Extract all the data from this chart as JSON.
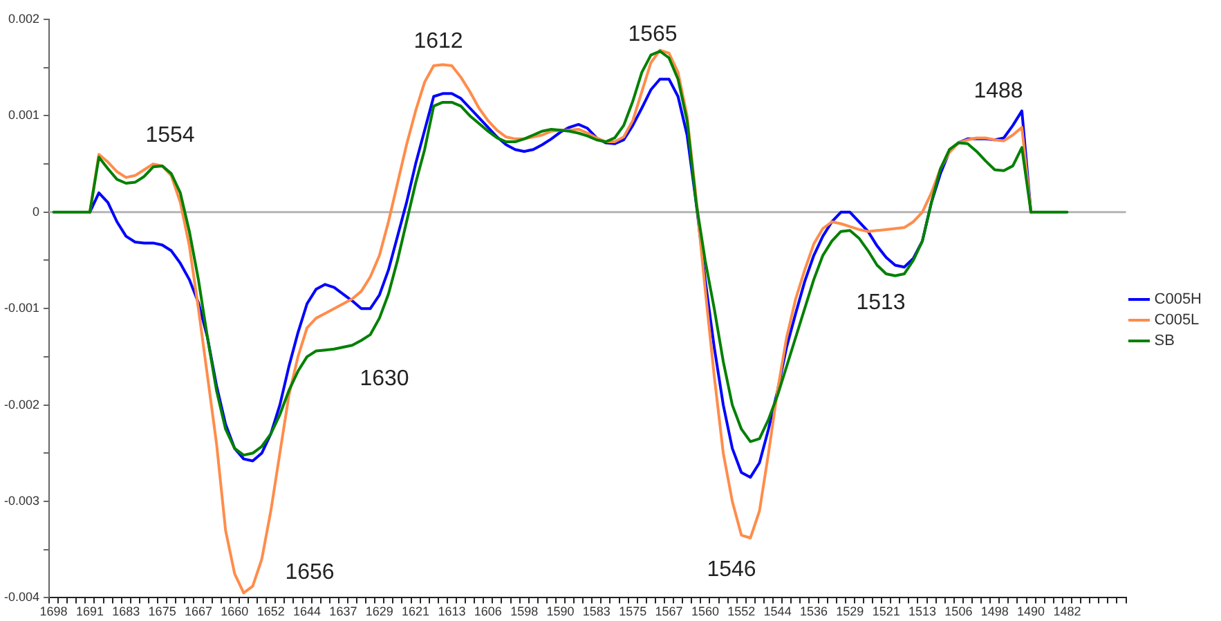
{
  "chart_data": {
    "type": "line",
    "categories": [
      "1698",
      null,
      null,
      null,
      "1691",
      null,
      null,
      null,
      "1683",
      null,
      null,
      null,
      "1675",
      null,
      null,
      null,
      "1667",
      null,
      null,
      null,
      "1660",
      null,
      null,
      null,
      "1652",
      null,
      null,
      null,
      "1644",
      null,
      null,
      null,
      "1637",
      null,
      null,
      null,
      "1629",
      null,
      null,
      null,
      "1621",
      null,
      null,
      null,
      "1613",
      null,
      null,
      null,
      "1606",
      null,
      null,
      null,
      "1598",
      null,
      null,
      null,
      "1590",
      null,
      null,
      null,
      "1583",
      null,
      null,
      null,
      "1575",
      null,
      null,
      null,
      "1567",
      null,
      null,
      null,
      "1560",
      null,
      null,
      null,
      "1552",
      null,
      null,
      null,
      "1544",
      null,
      null,
      null,
      "1536",
      null,
      null,
      null,
      "1529",
      null,
      null,
      null,
      "1521",
      null,
      null,
      null,
      "1513",
      null,
      null,
      null,
      "1506",
      null,
      null,
      null,
      "1498",
      null,
      null,
      null,
      "1490",
      null,
      null,
      null,
      "1482",
      null,
      null,
      null,
      null,
      null,
      null
    ],
    "series": [
      {
        "name": "C005H",
        "color": "#0000ff",
        "values": [
          null,
          null,
          null,
          null,
          0,
          0.0002,
          0.0001,
          -0.0001,
          -0.00025,
          -0.00031,
          -0.00032,
          -0.00032,
          -0.00034,
          -0.0004,
          -0.00053,
          -0.0007,
          -0.00094,
          -0.0013,
          -0.0018,
          -0.0022,
          -0.00245,
          -0.00256,
          -0.00258,
          -0.0025,
          -0.0023,
          -0.002,
          -0.0016,
          -0.00125,
          -0.00095,
          -0.0008,
          -0.00075,
          -0.00078,
          -0.00085,
          -0.00092,
          -0.001,
          -0.001,
          -0.00086,
          -0.0006,
          -0.00025,
          0.0001,
          0.0005,
          0.00085,
          0.0012,
          0.00123,
          0.00123,
          0.00118,
          0.00108,
          0.00098,
          0.00088,
          0.00078,
          0.0007,
          0.00065,
          0.00063,
          0.00065,
          0.0007,
          0.00076,
          0.00083,
          0.00088,
          0.00091,
          0.00087,
          0.00077,
          0.00072,
          0.00071,
          0.00075,
          0.0009,
          0.00108,
          0.00127,
          0.00138,
          0.00138,
          0.0012,
          0.0008,
          0.0001,
          -0.0007,
          -0.0014,
          -0.002,
          -0.00245,
          -0.0027,
          -0.00275,
          -0.0026,
          -0.00225,
          -0.00185,
          -0.0014,
          -0.00105,
          -0.00072,
          -0.00045,
          -0.00025,
          -0.0001,
          0,
          0,
          -0.0001,
          -0.0002,
          -0.00035,
          -0.00047,
          -0.00055,
          -0.00057,
          -0.00048,
          -0.0003,
          0.0001,
          0.0004,
          0.00063,
          0.00072,
          0.00076,
          0.00076,
          0.00076,
          0.00075,
          0.00077,
          0.0009,
          0.00105,
          0,
          null,
          null,
          null,
          null,
          null,
          null,
          null,
          null,
          null,
          null
        ]
      },
      {
        "name": "C005L",
        "color": "#ff8c4a",
        "values": [
          null,
          null,
          null,
          null,
          0,
          0.0006,
          0.00052,
          0.00042,
          0.00036,
          0.00038,
          0.00044,
          0.0005,
          0.00048,
          0.00038,
          0.0001,
          -0.00035,
          -0.001,
          -0.0017,
          -0.0024,
          -0.0033,
          -0.00375,
          -0.00395,
          -0.00388,
          -0.0036,
          -0.0031,
          -0.0025,
          -0.0019,
          -0.0015,
          -0.0012,
          -0.0011,
          -0.00105,
          -0.001,
          -0.00095,
          -0.0009,
          -0.00082,
          -0.00067,
          -0.00045,
          -0.0001,
          0.0003,
          0.0007,
          0.00105,
          0.00135,
          0.00152,
          0.00153,
          0.00152,
          0.0014,
          0.00125,
          0.00108,
          0.00095,
          0.00085,
          0.00078,
          0.00076,
          0.00076,
          0.00078,
          0.0008,
          0.00084,
          0.00085,
          0.00085,
          0.00086,
          0.00082,
          0.00077,
          0.00073,
          0.00073,
          0.00078,
          0.00095,
          0.00125,
          0.00155,
          0.00168,
          0.00165,
          0.00145,
          0.001,
          0.00015,
          -0.0008,
          -0.0017,
          -0.0025,
          -0.003,
          -0.00335,
          -0.00338,
          -0.0031,
          -0.0025,
          -0.00185,
          -0.0013,
          -0.0009,
          -0.0006,
          -0.00033,
          -0.00017,
          -0.0001,
          -0.00012,
          -0.00015,
          -0.00018,
          -0.0002,
          -0.00019,
          -0.00018,
          -0.00017,
          -0.00016,
          -0.0001,
          0,
          0.0002,
          0.00045,
          0.00062,
          0.00072,
          0.00075,
          0.00077,
          0.00077,
          0.00075,
          0.00074,
          0.0008,
          0.00088,
          0,
          null,
          null,
          null,
          null,
          null,
          null,
          null,
          null,
          null,
          null
        ]
      },
      {
        "name": "SB",
        "color": "#008000",
        "values": [
          0,
          0,
          0,
          0,
          0,
          0.00057,
          0.00045,
          0.00034,
          0.0003,
          0.00031,
          0.00037,
          0.00047,
          0.00048,
          0.0004,
          0.0002,
          -0.0002,
          -0.0007,
          -0.0013,
          -0.00185,
          -0.00225,
          -0.00245,
          -0.00252,
          -0.0025,
          -0.00243,
          -0.0023,
          -0.0021,
          -0.00185,
          -0.00165,
          -0.0015,
          -0.00144,
          -0.00143,
          -0.00142,
          -0.0014,
          -0.00138,
          -0.00133,
          -0.00127,
          -0.0011,
          -0.00085,
          -0.0005,
          -0.0001,
          0.0003,
          0.00065,
          0.0011,
          0.00114,
          0.00114,
          0.0011,
          0.001,
          0.00092,
          0.00084,
          0.00077,
          0.00073,
          0.00073,
          0.00076,
          0.0008,
          0.00084,
          0.00086,
          0.00085,
          0.00084,
          0.00082,
          0.00079,
          0.00075,
          0.00073,
          0.00077,
          0.0009,
          0.00115,
          0.00145,
          0.00163,
          0.00167,
          0.0016,
          0.00138,
          0.00095,
          0.0001,
          -0.0005,
          -0.001,
          -0.00155,
          -0.002,
          -0.00225,
          -0.00238,
          -0.00235,
          -0.00215,
          -0.0019,
          -0.0016,
          -0.0013,
          -0.001,
          -0.0007,
          -0.00045,
          -0.0003,
          -0.0002,
          -0.00019,
          -0.00027,
          -0.0004,
          -0.00055,
          -0.00064,
          -0.00066,
          -0.00064,
          -0.0005,
          -0.0003,
          0.0001,
          0.00045,
          0.00065,
          0.00072,
          0.00071,
          0.00063,
          0.00053,
          0.00044,
          0.00043,
          0.00048,
          0.00067,
          0,
          0,
          0,
          0,
          0,
          null,
          null,
          null,
          null,
          null,
          null
        ]
      }
    ],
    "ylim": [
      -0.004,
      0.002
    ],
    "yticks": [
      0.002,
      {
        "value": 0.0015,
        "label": null
      },
      0.001,
      {
        "value": 0.0005,
        "label": null
      },
      0,
      {
        "value": -0.0005,
        "label": null
      },
      -0.001,
      {
        "value": -0.0015,
        "label": null
      },
      -0.002,
      {
        "value": -0.0025,
        "label": null
      },
      -0.003,
      {
        "value": -0.0035,
        "label": null
      },
      -0.004
    ],
    "ref_lines": [
      {
        "axis": "y",
        "value": 0,
        "color": "#b4b4b4"
      }
    ],
    "annotations": [
      "1554",
      "1612",
      "1565",
      "1488",
      "1630",
      "1656",
      "1546",
      "1513"
    ],
    "grid": false,
    "legend": "right",
    "marker": "none",
    "line_style": "solid"
  }
}
